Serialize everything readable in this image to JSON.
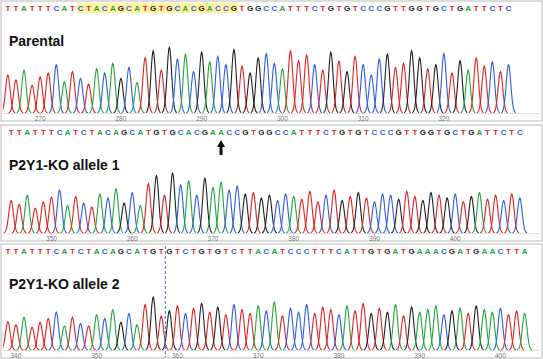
{
  "chart_data": [
    {
      "type": "chromatogram",
      "title": "Parental",
      "sequence": "TTATTTCATCTACAGCATGTGCACGACCGTGGCCATTTCTGTGTCCCGTTGGTGCTGATTCTC",
      "x": [
        266,
        267,
        268,
        269,
        270,
        271,
        272,
        273,
        274,
        275,
        276,
        277,
        278,
        279,
        280,
        281,
        282,
        283,
        284,
        285,
        286,
        287,
        288,
        289,
        290,
        291,
        292,
        293,
        294,
        295,
        296,
        297,
        298,
        299,
        300,
        301,
        302,
        303,
        304,
        305,
        306,
        307,
        308,
        309,
        310,
        311,
        312,
        313,
        314,
        315,
        316,
        317,
        318,
        319,
        320,
        321,
        322,
        323,
        324,
        325,
        326,
        327,
        328
      ],
      "values": [
        55,
        48,
        62,
        40,
        52,
        58,
        70,
        45,
        60,
        50,
        42,
        64,
        58,
        72,
        50,
        66,
        44,
        80,
        90,
        62,
        95,
        78,
        85,
        60,
        88,
        74,
        82,
        70,
        92,
        68,
        58,
        80,
        86,
        72,
        64,
        90,
        76,
        84,
        70,
        62,
        88,
        75,
        60,
        82,
        70,
        55,
        78,
        85,
        66,
        72,
        90,
        80,
        64,
        70,
        86,
        58,
        76,
        62,
        80,
        68,
        74,
        60,
        70
      ],
      "xlim": [
        265.4,
        331.9
      ],
      "xticks": [
        270,
        280,
        290,
        300,
        310,
        320
      ],
      "ylim": [
        0,
        100
      ],
      "tick_labels": "x",
      "highlight": [
        274.5,
        294.5
      ]
    },
    {
      "type": "chromatogram",
      "title": "P2Y1-KO allele 1",
      "sequence": "TTATTTCATCTACAGCATGTGCACGAACCGTGGCCATTTCTGTGTCCCGTTGGTGCTGATTCTC",
      "x": [
        345,
        346,
        347,
        348,
        349,
        350,
        351,
        352,
        353,
        354,
        355,
        356,
        357,
        358,
        359,
        360,
        361,
        362,
        363,
        364,
        365,
        366,
        367,
        368,
        369,
        370,
        371,
        372,
        373,
        374,
        375,
        376,
        377,
        378,
        379,
        380,
        381,
        382,
        383,
        384,
        385,
        386,
        387,
        388,
        389,
        390,
        391,
        392,
        393,
        394,
        395,
        396,
        397,
        398,
        399,
        400,
        401,
        402,
        403,
        404,
        405,
        406,
        407,
        408
      ],
      "values": [
        50,
        44,
        58,
        38,
        48,
        55,
        66,
        42,
        56,
        46,
        40,
        60,
        54,
        68,
        46,
        62,
        42,
        76,
        88,
        58,
        92,
        74,
        80,
        58,
        84,
        70,
        78,
        66,
        72,
        60,
        62,
        54,
        58,
        50,
        60,
        56,
        52,
        64,
        48,
        58,
        66,
        50,
        56,
        62,
        54,
        48,
        60,
        58,
        52,
        64,
        56,
        50,
        62,
        58,
        54,
        60,
        48,
        56,
        62,
        52,
        58,
        50,
        60,
        54
      ],
      "xlim": [
        344,
        410.5
      ],
      "xticks": [
        350,
        360,
        370,
        380,
        390,
        400
      ],
      "ylim": [
        0,
        100
      ],
      "tick_labels": "x",
      "marker_x": 371
    },
    {
      "type": "chromatogram",
      "title": "P2Y1-KO allele 2",
      "sequence": "TTATTTCATCTACAGCATGTGTCTGTGTCTTACATCCCTTTCATTGTGATGAAACGATGAACTTA",
      "x": [
        339,
        340,
        341,
        342,
        343,
        344,
        345,
        346,
        347,
        348,
        349,
        350,
        351,
        352,
        353,
        354,
        355,
        356,
        357,
        358,
        359,
        360,
        361,
        362,
        363,
        364,
        365,
        366,
        367,
        368,
        369,
        370,
        371,
        372,
        373,
        374,
        375,
        376,
        377,
        378,
        379,
        380,
        381,
        382,
        383,
        384,
        385,
        386,
        387,
        388,
        389,
        390,
        391,
        392,
        393,
        394,
        395,
        396,
        397,
        398,
        399,
        400,
        401,
        402,
        403
      ],
      "values": [
        45,
        40,
        52,
        36,
        44,
        50,
        60,
        38,
        52,
        42,
        38,
        56,
        50,
        64,
        44,
        58,
        40,
        72,
        84,
        54,
        62,
        70,
        58,
        66,
        74,
        60,
        68,
        56,
        72,
        64,
        58,
        70,
        62,
        76,
        54,
        66,
        60,
        72,
        58,
        68,
        64,
        56,
        70,
        62,
        74,
        58,
        66,
        60,
        72,
        54,
        68,
        60,
        64,
        70,
        56,
        62,
        66,
        58,
        70,
        64,
        60,
        66,
        56,
        62,
        58
      ],
      "xlim": [
        338.4,
        404.9
      ],
      "xticks": [
        340,
        350,
        360,
        370,
        380,
        390,
        400
      ],
      "ylim": [
        0,
        100
      ],
      "tick_labels": "x",
      "cut_x": 358.5
    }
  ]
}
